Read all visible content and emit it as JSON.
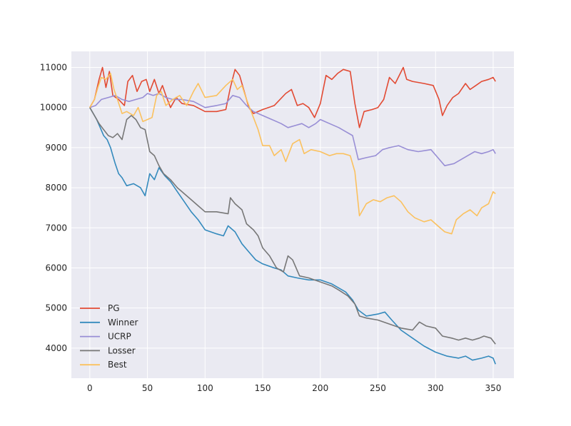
{
  "chart_data": {
    "type": "line",
    "title": "",
    "xlabel": "",
    "ylabel": "",
    "xlim": [
      -16,
      368
    ],
    "ylim": [
      3250,
      11400
    ],
    "xticks": [
      0,
      50,
      100,
      150,
      200,
      250,
      300,
      350
    ],
    "yticks": [
      4000,
      5000,
      6000,
      7000,
      8000,
      9000,
      10000,
      11000
    ],
    "grid": true,
    "background": "#eaeaf2",
    "legend_position": "lower-left",
    "series": [
      {
        "name": "PG",
        "color": "#e24a33",
        "points": [
          [
            0,
            10000
          ],
          [
            4,
            10200
          ],
          [
            8,
            10700
          ],
          [
            11,
            11000
          ],
          [
            14,
            10500
          ],
          [
            17,
            10900
          ],
          [
            20,
            10300
          ],
          [
            25,
            10200
          ],
          [
            30,
            10050
          ],
          [
            33,
            10650
          ],
          [
            37,
            10800
          ],
          [
            41,
            10400
          ],
          [
            45,
            10650
          ],
          [
            49,
            10700
          ],
          [
            52,
            10400
          ],
          [
            56,
            10700
          ],
          [
            60,
            10350
          ],
          [
            63,
            10550
          ],
          [
            66,
            10300
          ],
          [
            70,
            10000
          ],
          [
            75,
            10250
          ],
          [
            80,
            10100
          ],
          [
            90,
            10050
          ],
          [
            100,
            9900
          ],
          [
            110,
            9900
          ],
          [
            118,
            9950
          ],
          [
            122,
            10500
          ],
          [
            126,
            10950
          ],
          [
            130,
            10800
          ],
          [
            134,
            10400
          ],
          [
            138,
            10000
          ],
          [
            142,
            9850
          ],
          [
            150,
            9950
          ],
          [
            160,
            10050
          ],
          [
            170,
            10350
          ],
          [
            175,
            10450
          ],
          [
            180,
            10050
          ],
          [
            185,
            10100
          ],
          [
            190,
            10000
          ],
          [
            195,
            9750
          ],
          [
            200,
            10100
          ],
          [
            205,
            10800
          ],
          [
            210,
            10700
          ],
          [
            215,
            10850
          ],
          [
            220,
            10950
          ],
          [
            226,
            10900
          ],
          [
            230,
            10100
          ],
          [
            234,
            9500
          ],
          [
            238,
            9900
          ],
          [
            245,
            9950
          ],
          [
            250,
            10000
          ],
          [
            255,
            10200
          ],
          [
            260,
            10750
          ],
          [
            265,
            10600
          ],
          [
            272,
            11000
          ],
          [
            275,
            10700
          ],
          [
            280,
            10650
          ],
          [
            290,
            10600
          ],
          [
            298,
            10550
          ],
          [
            303,
            10200
          ],
          [
            306,
            9800
          ],
          [
            310,
            10050
          ],
          [
            315,
            10250
          ],
          [
            320,
            10350
          ],
          [
            326,
            10600
          ],
          [
            330,
            10450
          ],
          [
            335,
            10550
          ],
          [
            340,
            10650
          ],
          [
            346,
            10700
          ],
          [
            350,
            10750
          ],
          [
            352,
            10650
          ]
        ]
      },
      {
        "name": "Winner",
        "color": "#348abd",
        "points": [
          [
            0,
            10000
          ],
          [
            3,
            9850
          ],
          [
            6,
            9700
          ],
          [
            9,
            9500
          ],
          [
            12,
            9300
          ],
          [
            15,
            9200
          ],
          [
            18,
            9000
          ],
          [
            20,
            8800
          ],
          [
            22,
            8600
          ],
          [
            25,
            8350
          ],
          [
            28,
            8250
          ],
          [
            32,
            8050
          ],
          [
            38,
            8100
          ],
          [
            44,
            8000
          ],
          [
            48,
            7800
          ],
          [
            52,
            8350
          ],
          [
            56,
            8200
          ],
          [
            60,
            8500
          ],
          [
            65,
            8300
          ],
          [
            70,
            8150
          ],
          [
            76,
            7900
          ],
          [
            82,
            7650
          ],
          [
            88,
            7400
          ],
          [
            94,
            7200
          ],
          [
            100,
            6950
          ],
          [
            110,
            6850
          ],
          [
            116,
            6800
          ],
          [
            120,
            7050
          ],
          [
            126,
            6900
          ],
          [
            132,
            6600
          ],
          [
            138,
            6400
          ],
          [
            144,
            6200
          ],
          [
            150,
            6100
          ],
          [
            160,
            6000
          ],
          [
            166,
            5950
          ],
          [
            172,
            5800
          ],
          [
            180,
            5750
          ],
          [
            190,
            5700
          ],
          [
            200,
            5700
          ],
          [
            210,
            5600
          ],
          [
            216,
            5500
          ],
          [
            222,
            5400
          ],
          [
            228,
            5200
          ],
          [
            233,
            4950
          ],
          [
            240,
            4800
          ],
          [
            250,
            4850
          ],
          [
            256,
            4900
          ],
          [
            262,
            4700
          ],
          [
            270,
            4450
          ],
          [
            280,
            4250
          ],
          [
            290,
            4050
          ],
          [
            300,
            3900
          ],
          [
            310,
            3800
          ],
          [
            320,
            3750
          ],
          [
            326,
            3800
          ],
          [
            332,
            3700
          ],
          [
            340,
            3750
          ],
          [
            346,
            3800
          ],
          [
            350,
            3750
          ],
          [
            352,
            3600
          ]
        ]
      },
      {
        "name": "UCRP",
        "color": "#988ed5",
        "points": [
          [
            0,
            10000
          ],
          [
            5,
            10050
          ],
          [
            10,
            10200
          ],
          [
            16,
            10250
          ],
          [
            22,
            10300
          ],
          [
            28,
            10200
          ],
          [
            34,
            10150
          ],
          [
            40,
            10200
          ],
          [
            46,
            10250
          ],
          [
            50,
            10350
          ],
          [
            55,
            10300
          ],
          [
            60,
            10350
          ],
          [
            66,
            10250
          ],
          [
            72,
            10200
          ],
          [
            80,
            10200
          ],
          [
            90,
            10150
          ],
          [
            100,
            10000
          ],
          [
            110,
            10050
          ],
          [
            118,
            10100
          ],
          [
            124,
            10300
          ],
          [
            130,
            10250
          ],
          [
            136,
            10050
          ],
          [
            142,
            9900
          ],
          [
            150,
            9800
          ],
          [
            158,
            9700
          ],
          [
            166,
            9600
          ],
          [
            172,
            9500
          ],
          [
            178,
            9550
          ],
          [
            184,
            9600
          ],
          [
            190,
            9500
          ],
          [
            196,
            9600
          ],
          [
            200,
            9700
          ],
          [
            208,
            9600
          ],
          [
            216,
            9500
          ],
          [
            222,
            9400
          ],
          [
            228,
            9300
          ],
          [
            233,
            8700
          ],
          [
            240,
            8750
          ],
          [
            248,
            8800
          ],
          [
            254,
            8950
          ],
          [
            260,
            9000
          ],
          [
            268,
            9050
          ],
          [
            276,
            8950
          ],
          [
            285,
            8900
          ],
          [
            296,
            8950
          ],
          [
            302,
            8750
          ],
          [
            308,
            8550
          ],
          [
            316,
            8600
          ],
          [
            322,
            8700
          ],
          [
            328,
            8800
          ],
          [
            334,
            8900
          ],
          [
            340,
            8850
          ],
          [
            346,
            8900
          ],
          [
            350,
            8950
          ],
          [
            352,
            8850
          ]
        ]
      },
      {
        "name": "Losser",
        "color": "#777777",
        "points": [
          [
            0,
            10000
          ],
          [
            4,
            9800
          ],
          [
            8,
            9600
          ],
          [
            12,
            9450
          ],
          [
            16,
            9300
          ],
          [
            20,
            9250
          ],
          [
            24,
            9350
          ],
          [
            28,
            9200
          ],
          [
            32,
            9700
          ],
          [
            36,
            9800
          ],
          [
            40,
            9700
          ],
          [
            44,
            9500
          ],
          [
            48,
            9450
          ],
          [
            52,
            8900
          ],
          [
            56,
            8800
          ],
          [
            60,
            8550
          ],
          [
            64,
            8350
          ],
          [
            70,
            8200
          ],
          [
            76,
            8000
          ],
          [
            82,
            7850
          ],
          [
            88,
            7700
          ],
          [
            94,
            7550
          ],
          [
            100,
            7400
          ],
          [
            110,
            7400
          ],
          [
            120,
            7350
          ],
          [
            122,
            7750
          ],
          [
            126,
            7600
          ],
          [
            132,
            7450
          ],
          [
            136,
            7100
          ],
          [
            142,
            6950
          ],
          [
            146,
            6800
          ],
          [
            150,
            6500
          ],
          [
            156,
            6300
          ],
          [
            162,
            6000
          ],
          [
            168,
            5900
          ],
          [
            172,
            6300
          ],
          [
            176,
            6200
          ],
          [
            182,
            5800
          ],
          [
            190,
            5750
          ],
          [
            200,
            5650
          ],
          [
            210,
            5550
          ],
          [
            216,
            5450
          ],
          [
            224,
            5300
          ],
          [
            230,
            5100
          ],
          [
            234,
            4800
          ],
          [
            240,
            4750
          ],
          [
            250,
            4700
          ],
          [
            260,
            4600
          ],
          [
            270,
            4500
          ],
          [
            280,
            4450
          ],
          [
            286,
            4650
          ],
          [
            292,
            4550
          ],
          [
            300,
            4500
          ],
          [
            306,
            4300
          ],
          [
            314,
            4250
          ],
          [
            320,
            4200
          ],
          [
            326,
            4250
          ],
          [
            332,
            4200
          ],
          [
            338,
            4250
          ],
          [
            342,
            4300
          ],
          [
            348,
            4250
          ],
          [
            352,
            4100
          ]
        ]
      },
      {
        "name": "Best",
        "color": "#fbc15e",
        "points": [
          [
            0,
            10000
          ],
          [
            4,
            10200
          ],
          [
            7,
            10500
          ],
          [
            10,
            10750
          ],
          [
            14,
            10700
          ],
          [
            18,
            10850
          ],
          [
            21,
            10450
          ],
          [
            24,
            10200
          ],
          [
            28,
            9850
          ],
          [
            32,
            9900
          ],
          [
            38,
            9800
          ],
          [
            42,
            10000
          ],
          [
            46,
            9650
          ],
          [
            50,
            9700
          ],
          [
            54,
            9750
          ],
          [
            58,
            10300
          ],
          [
            62,
            10400
          ],
          [
            66,
            10050
          ],
          [
            72,
            10200
          ],
          [
            78,
            10300
          ],
          [
            84,
            10050
          ],
          [
            90,
            10400
          ],
          [
            94,
            10600
          ],
          [
            100,
            10250
          ],
          [
            110,
            10300
          ],
          [
            118,
            10550
          ],
          [
            124,
            10700
          ],
          [
            128,
            10450
          ],
          [
            132,
            10550
          ],
          [
            136,
            10200
          ],
          [
            142,
            9750
          ],
          [
            146,
            9450
          ],
          [
            150,
            9050
          ],
          [
            156,
            9050
          ],
          [
            160,
            8800
          ],
          [
            166,
            8950
          ],
          [
            170,
            8650
          ],
          [
            176,
            9100
          ],
          [
            182,
            9200
          ],
          [
            186,
            8850
          ],
          [
            192,
            8950
          ],
          [
            200,
            8900
          ],
          [
            208,
            8800
          ],
          [
            214,
            8850
          ],
          [
            220,
            8850
          ],
          [
            226,
            8800
          ],
          [
            230,
            8400
          ],
          [
            234,
            7300
          ],
          [
            240,
            7600
          ],
          [
            246,
            7700
          ],
          [
            252,
            7650
          ],
          [
            258,
            7750
          ],
          [
            264,
            7800
          ],
          [
            270,
            7650
          ],
          [
            276,
            7400
          ],
          [
            282,
            7250
          ],
          [
            290,
            7150
          ],
          [
            296,
            7200
          ],
          [
            302,
            7050
          ],
          [
            308,
            6900
          ],
          [
            314,
            6850
          ],
          [
            318,
            7200
          ],
          [
            324,
            7350
          ],
          [
            330,
            7450
          ],
          [
            336,
            7300
          ],
          [
            340,
            7500
          ],
          [
            346,
            7600
          ],
          [
            350,
            7900
          ],
          [
            352,
            7850
          ]
        ]
      }
    ]
  }
}
